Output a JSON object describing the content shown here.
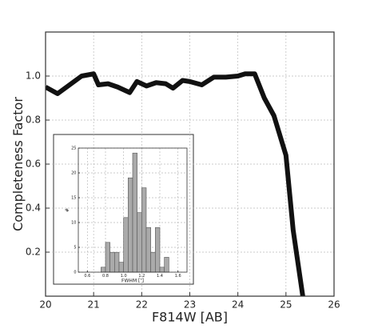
{
  "chart_data": [
    {
      "type": "line",
      "xlabel": "F814W [AB]",
      "ylabel": "Completeness Factor",
      "x": [
        20.0,
        20.25,
        20.5,
        20.75,
        21.0,
        21.1,
        21.3,
        21.5,
        21.75,
        21.9,
        22.1,
        22.3,
        22.5,
        22.65,
        22.85,
        23.0,
        23.25,
        23.5,
        23.75,
        24.0,
        24.15,
        24.35,
        24.55,
        24.75,
        25.0,
        25.15,
        25.35
      ],
      "values": [
        0.95,
        0.92,
        0.96,
        1.0,
        1.01,
        0.96,
        0.965,
        0.95,
        0.925,
        0.975,
        0.955,
        0.97,
        0.965,
        0.945,
        0.98,
        0.975,
        0.96,
        0.995,
        0.995,
        1.0,
        1.01,
        1.01,
        0.9,
        0.82,
        0.64,
        0.3,
        0.0
      ],
      "color": "#111111",
      "xlim": [
        20,
        26
      ],
      "xticks": [
        20,
        21,
        22,
        23,
        24,
        25,
        26
      ],
      "ylim": [
        0,
        1.2
      ],
      "yticks": [
        0.2,
        0.4,
        0.6,
        0.8,
        {
          "value": 1,
          "label": "1.0"
        }
      ],
      "grid": true
    },
    {
      "type": "histogram",
      "xlabel": "FWHM [″]",
      "ylabel": "#",
      "bins": [
        0.75,
        0.8,
        0.85,
        0.9,
        0.95,
        1.0,
        1.05,
        1.1,
        1.15,
        1.2,
        1.25,
        1.3,
        1.35,
        1.4,
        1.45,
        1.5
      ],
      "values": [
        1,
        6,
        4,
        4,
        2,
        11,
        19,
        24,
        12,
        17,
        9,
        4,
        9,
        1,
        3
      ],
      "color": "#aaaaaa",
      "xlim": [
        0.5,
        1.7
      ],
      "xticks": [
        0.6,
        0.8,
        {
          "value": 1,
          "label": "1.0"
        },
        1.2,
        1.4,
        1.6
      ],
      "ylim": [
        0,
        25
      ],
      "yticks": [
        0,
        5,
        10,
        15,
        20,
        25
      ],
      "grid": true
    }
  ]
}
